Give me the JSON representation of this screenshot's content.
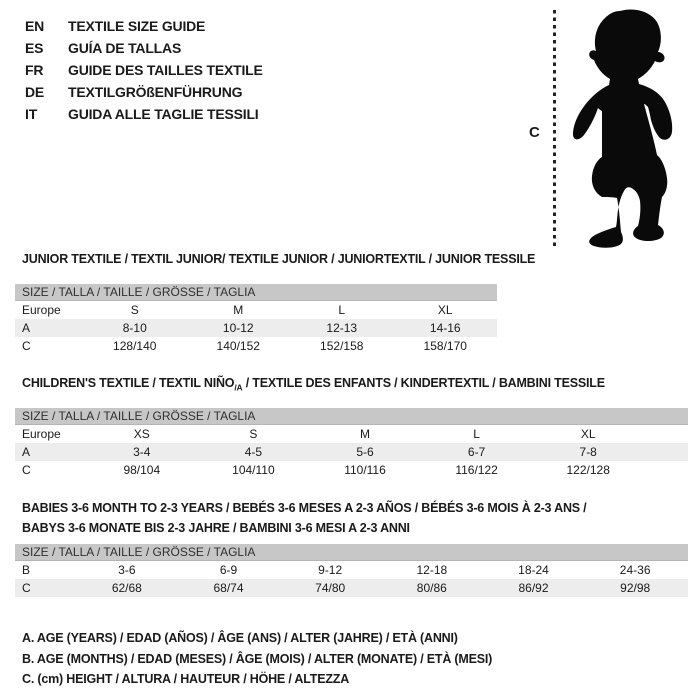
{
  "languages": [
    {
      "code": "EN",
      "label": "TEXTILE SIZE GUIDE"
    },
    {
      "code": "ES",
      "label": "GUÍA DE TALLAS"
    },
    {
      "code": "FR",
      "label": "GUIDE DES TAILLES TEXTILE"
    },
    {
      "code": "DE",
      "label": "TEXTILGRÖßENFÜHRUNG"
    },
    {
      "code": "IT",
      "label": "GUIDA ALLE TAGLIE TESSILI"
    }
  ],
  "figure_label": "C",
  "size_header": "SIZE / TALLA / TAILLE / GRÖSSE / TAGLIA",
  "tables": [
    {
      "title_lines": [
        [
          {
            "t": "JUNIOR TEXTILE / TEXTIL JUNIOR/ TEXTILE JUNIOR / JUNIORTEXTIL / JUNIOR TESSILE"
          }
        ]
      ],
      "rows": [
        {
          "label": "Europe",
          "values": [
            "S",
            "M",
            "L",
            "XL"
          ]
        },
        {
          "label": "A",
          "values": [
            "8-10",
            "10-12",
            "12-13",
            "14-16"
          ]
        },
        {
          "label": "C",
          "values": [
            "128/140",
            "140/152",
            "152/158",
            "158/170"
          ]
        }
      ]
    },
    {
      "title_lines": [
        [
          {
            "t": "CHILDREN'S TEXTILE / TEXTIL NIÑO"
          },
          {
            "t": "/A",
            "sub": true
          },
          {
            "t": " / TEXTILE DES ENFANTS / KINDERTEXTIL / BAMBINI TESSILE"
          }
        ]
      ],
      "rows": [
        {
          "label": "Europe",
          "values": [
            "XS",
            "S",
            "M",
            "L",
            "XL"
          ]
        },
        {
          "label": "A",
          "values": [
            "3-4",
            "4-5",
            "5-6",
            "6-7",
            "7-8"
          ]
        },
        {
          "label": "C",
          "values": [
            "98/104",
            "104/110",
            "110/116",
            "116/122",
            "122/128"
          ]
        }
      ]
    },
    {
      "title_lines": [
        [
          {
            "t": "BABIES 3-6 MONTH TO 2-3 YEARS / BEBÉS 3-6 MESES A 2-3 AÑOS / BÉBÉS 3-6 MOIS À 2-3 ANS /"
          }
        ],
        [
          {
            "t": "BABYS 3-6 MONATE BIS 2-3 JAHRE / BAMBINI 3-6 MESI A 2-3 ANNI"
          }
        ]
      ],
      "rows": [
        {
          "label": "B",
          "values": [
            "3-6",
            "6-9",
            "9-12",
            "12-18",
            "18-24",
            "24-36"
          ]
        },
        {
          "label": "C",
          "values": [
            "62/68",
            "68/74",
            "74/80",
            "80/86",
            "86/92",
            "92/98"
          ]
        }
      ]
    }
  ],
  "legend": [
    "A. AGE (YEARS) / EDAD (AÑOS) / ÂGE (ANS) / ALTER (JAHRE) / ETÀ (ANNI)",
    "B. AGE (MONTHS) / EDAD (MESES) / ÂGE (MOIS) / ALTER (MONATE) / ETÀ (MESI)",
    "C. (cm) HEIGHT / ALTURA / HAUTEUR / HÖHE / ALTEZZA"
  ],
  "colors": {
    "header_bar": "#c7c7c7",
    "alt_row": "#ededed",
    "silhouette": "#0a0a0a",
    "text": "#1a1a1a"
  }
}
